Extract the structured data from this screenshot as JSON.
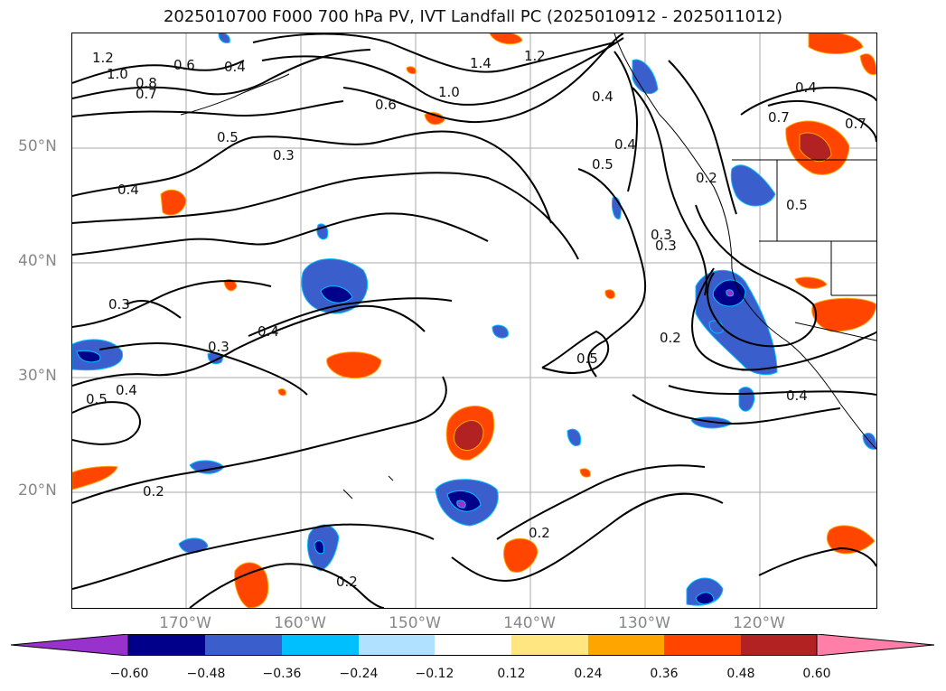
{
  "title": "2025010700 F000 700 hPa PV, IVT Landfall PC (2025010912 - 2025011012)",
  "lat_labels": [
    "50°N",
    "40°N",
    "30°N",
    "20°N"
  ],
  "lon_labels": [
    "170°W",
    "160°W",
    "150°W",
    "140°W",
    "130°W",
    "120°W"
  ],
  "contour_labels": [
    "1.2",
    "1.0",
    "0.8",
    "0.7",
    "0.6",
    "0.4",
    "0.5",
    "0.3",
    "0.4",
    "1.4",
    "1.2",
    "1.0",
    "0.6",
    "0.4",
    "0.5",
    "0.4",
    "0.2",
    "0.3",
    "0.4",
    "0.7",
    "0.7",
    "0.5",
    "0.3",
    "0.4",
    "0.3",
    "0.5",
    "0.4",
    "0.3",
    "0.5",
    "0.2",
    "0.4",
    "0.2",
    "0.2",
    "0.2"
  ],
  "colorbar": {
    "ticks": [
      "−0.60",
      "−0.48",
      "−0.36",
      "−0.24",
      "−0.12",
      "0.12",
      "0.24",
      "0.36",
      "0.48",
      "0.60"
    ],
    "colors": [
      "#9932cc",
      "#00008b",
      "#3a5fcd",
      "#00bfff",
      "#b0e2ff",
      "#ffffff",
      "#ffe680",
      "#ffa500",
      "#ff4500",
      "#b22222",
      "#ff7fa8"
    ]
  },
  "legend_icons": {
    "extend_low": "arrow-left-icon",
    "extend_high": "arrow-right-icon"
  }
}
